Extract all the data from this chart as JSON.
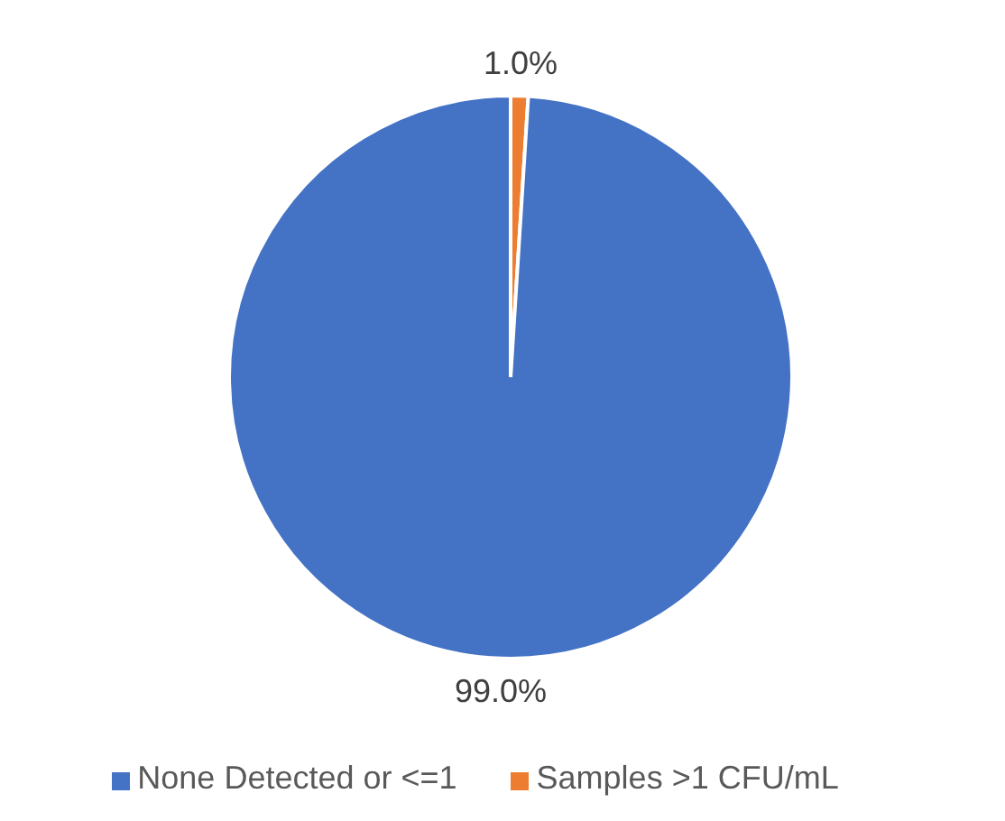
{
  "chart_data": {
    "type": "pie",
    "categories": [
      "Samples >1 CFU/mL",
      "None Detected or <=1"
    ],
    "values": [
      1.0,
      99.0
    ],
    "colors": [
      "#ed7d31",
      "#4472c4"
    ],
    "value_labels": [
      "1.0%",
      "99.0%"
    ],
    "legend": "bottom"
  }
}
